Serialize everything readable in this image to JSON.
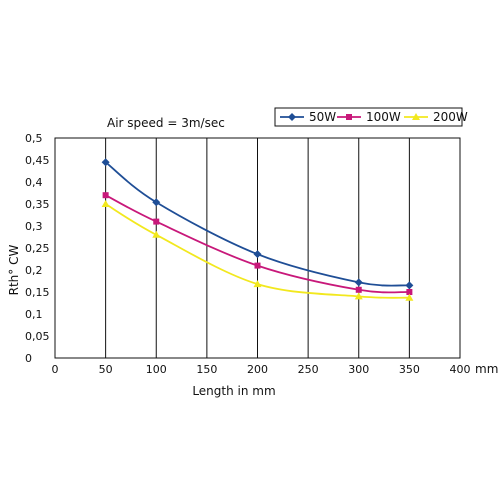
{
  "chart_data": {
    "type": "line",
    "title": "",
    "annotation": "Air speed = 3m/sec",
    "xlabel": "Length in mm",
    "ylabel": "Rth° CW",
    "x_unit": "mm",
    "xlim": [
      0,
      400
    ],
    "ylim": [
      0,
      0.5
    ],
    "x_ticks": [
      "0",
      "50",
      "100",
      "150",
      "200",
      "250",
      "300",
      "350",
      "400"
    ],
    "y_ticks": [
      "0",
      "0,05",
      "0,1",
      "0,15",
      "0,2",
      "0,25",
      "0,3",
      "0,35",
      "0,4",
      "0,45",
      "0,5"
    ],
    "grid": true,
    "legend_position": "top-right",
    "series": [
      {
        "name": "50W",
        "color": "#1f4e96",
        "marker": "diamond",
        "x": [
          50,
          100,
          200,
          300,
          350
        ],
        "y": [
          0.445,
          0.354,
          0.236,
          0.172,
          0.165
        ]
      },
      {
        "name": "100W",
        "color": "#c8187a",
        "marker": "square",
        "x": [
          50,
          100,
          200,
          300,
          350
        ],
        "y": [
          0.37,
          0.31,
          0.21,
          0.155,
          0.15
        ]
      },
      {
        "name": "200W",
        "color": "#f2e81e",
        "marker": "triangle",
        "x": [
          50,
          100,
          200,
          300,
          350
        ],
        "y": [
          0.35,
          0.28,
          0.168,
          0.14,
          0.137
        ]
      }
    ]
  }
}
